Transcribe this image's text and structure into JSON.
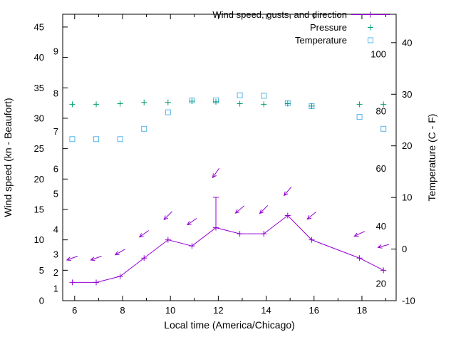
{
  "chart_data": {
    "type": "line",
    "title": "",
    "legend": {
      "position": "top-center",
      "entries": [
        {
          "id": "wind",
          "label": "Wind speed, gusts, and direction",
          "marker": "line-plus"
        },
        {
          "id": "pressure",
          "label": "Pressure",
          "marker": "plus"
        },
        {
          "id": "temperature",
          "label": "Temperature",
          "marker": "open-square"
        }
      ]
    },
    "x_axis": {
      "label": "Local time (America/Chicago)",
      "min": 5.5,
      "max": 19.43,
      "major_ticks": [
        6,
        8,
        10,
        12,
        14,
        16,
        18
      ],
      "minor_ticks": [
        7,
        9,
        11,
        13,
        15,
        17,
        19
      ]
    },
    "y_left": {
      "label": "Wind speed (kn - Beaufort)",
      "min": 0,
      "max": 47.1,
      "ticks": [
        0,
        5,
        10,
        15,
        20,
        25,
        30,
        35,
        40,
        45
      ],
      "beaufort_labels": [
        {
          "label": "1",
          "at": 2.0
        },
        {
          "label": "2",
          "at": 4.6
        },
        {
          "label": "3",
          "at": 7.6
        },
        {
          "label": "4",
          "at": 11.7
        },
        {
          "label": "5",
          "at": 17.6
        },
        {
          "label": "6",
          "at": 21.7
        },
        {
          "label": "7",
          "at": 27.8
        },
        {
          "label": "8",
          "at": 34.1
        },
        {
          "label": "9",
          "at": 41.0
        }
      ]
    },
    "y_right": {
      "label": "Temperature (C - F)",
      "min": -10,
      "max": 45.5,
      "ticks": [
        -10,
        0,
        10,
        20,
        30,
        40
      ],
      "fahrenheit_labels": [
        {
          "label": "20",
          "at_c": -6.7
        },
        {
          "label": "40",
          "at_c": 4.4
        },
        {
          "label": "60",
          "at_c": 15.6
        },
        {
          "label": "80",
          "at_c": 26.7
        },
        {
          "label": "100",
          "at_c": 37.8
        }
      ]
    },
    "x": [
      5.9,
      6.9,
      7.9,
      8.9,
      9.9,
      10.9,
      11.9,
      12.9,
      13.9,
      14.9,
      15.9,
      17.9,
      18.9
    ],
    "series": {
      "wind_speed_kn": [
        3,
        3,
        4,
        7,
        10,
        9,
        12,
        11,
        11,
        14,
        10,
        7,
        5
      ],
      "wind_gust_kn": [
        3,
        3,
        4,
        7,
        10,
        9,
        17,
        11,
        11,
        14,
        10,
        7,
        5
      ],
      "wind_dir_marker_y_kn": [
        7,
        7,
        8,
        11,
        14,
        13,
        21,
        15,
        15,
        18,
        14,
        11,
        9
      ],
      "wind_dir_angle_deg": [
        200,
        200,
        210,
        215,
        225,
        215,
        235,
        220,
        225,
        230,
        220,
        205,
        195
      ],
      "pressure_plot_y_left_units": [
        32.3,
        32.3,
        32.4,
        32.6,
        32.6,
        32.8,
        32.7,
        32.4,
        32.3,
        32.4,
        32.0,
        32.3,
        32.3
      ],
      "temperature_c": [
        21.3,
        21.3,
        21.3,
        23.3,
        26.5,
        28.8,
        28.8,
        29.8,
        29.7,
        28.3,
        27.7,
        25.6,
        23.3
      ]
    },
    "colors": {
      "wind": "#9400d3",
      "pressure": "#009e73",
      "temperature": "#56b4e9",
      "axis": "#000000",
      "background": "#ffffff"
    }
  }
}
